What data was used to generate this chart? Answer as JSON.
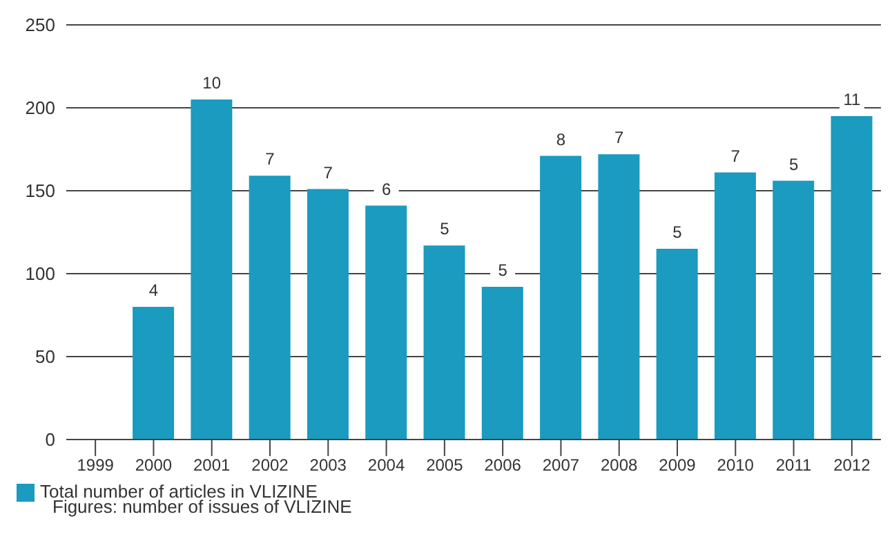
{
  "chart_data": {
    "type": "bar",
    "categories": [
      "1999",
      "2000",
      "2001",
      "2002",
      "2003",
      "2004",
      "2005",
      "2006",
      "2007",
      "2008",
      "2009",
      "2010",
      "2011",
      "2012"
    ],
    "series": [
      {
        "name": "Total number of articles in VLIZINE",
        "color": "#1a9bbf",
        "values": [
          null,
          80,
          205,
          159,
          151,
          141,
          117,
          92,
          171,
          172,
          115,
          161,
          156,
          195
        ]
      }
    ],
    "ylim": [
      0,
      250
    ],
    "yticks": [
      0,
      50,
      100,
      150,
      200,
      250
    ],
    "grid": "y",
    "legend": "bottom left",
    "annotations": [
      {
        "text": "4",
        "x": "2000",
        "y": 80
      },
      {
        "text": "10",
        "x": "2001",
        "y": 205
      },
      {
        "text": "7",
        "x": "2002",
        "y": 159
      },
      {
        "text": "7",
        "x": "2003",
        "y": 151
      },
      {
        "text": "6",
        "x": "2004",
        "y": 141
      },
      {
        "text": "5",
        "x": "2005",
        "y": 117
      },
      {
        "text": "5",
        "x": "2006",
        "y": 92
      },
      {
        "text": "8",
        "x": "2007",
        "y": 171
      },
      {
        "text": "7",
        "x": "2008",
        "y": 172
      },
      {
        "text": "5",
        "x": "2009",
        "y": 115
      },
      {
        "text": "7",
        "x": "2010",
        "y": 161
      },
      {
        "text": "5",
        "x": "2011",
        "y": 156
      },
      {
        "text": "11",
        "x": "2012",
        "y": 195
      },
      "Figures: number of issues of VLIZINE"
    ]
  }
}
